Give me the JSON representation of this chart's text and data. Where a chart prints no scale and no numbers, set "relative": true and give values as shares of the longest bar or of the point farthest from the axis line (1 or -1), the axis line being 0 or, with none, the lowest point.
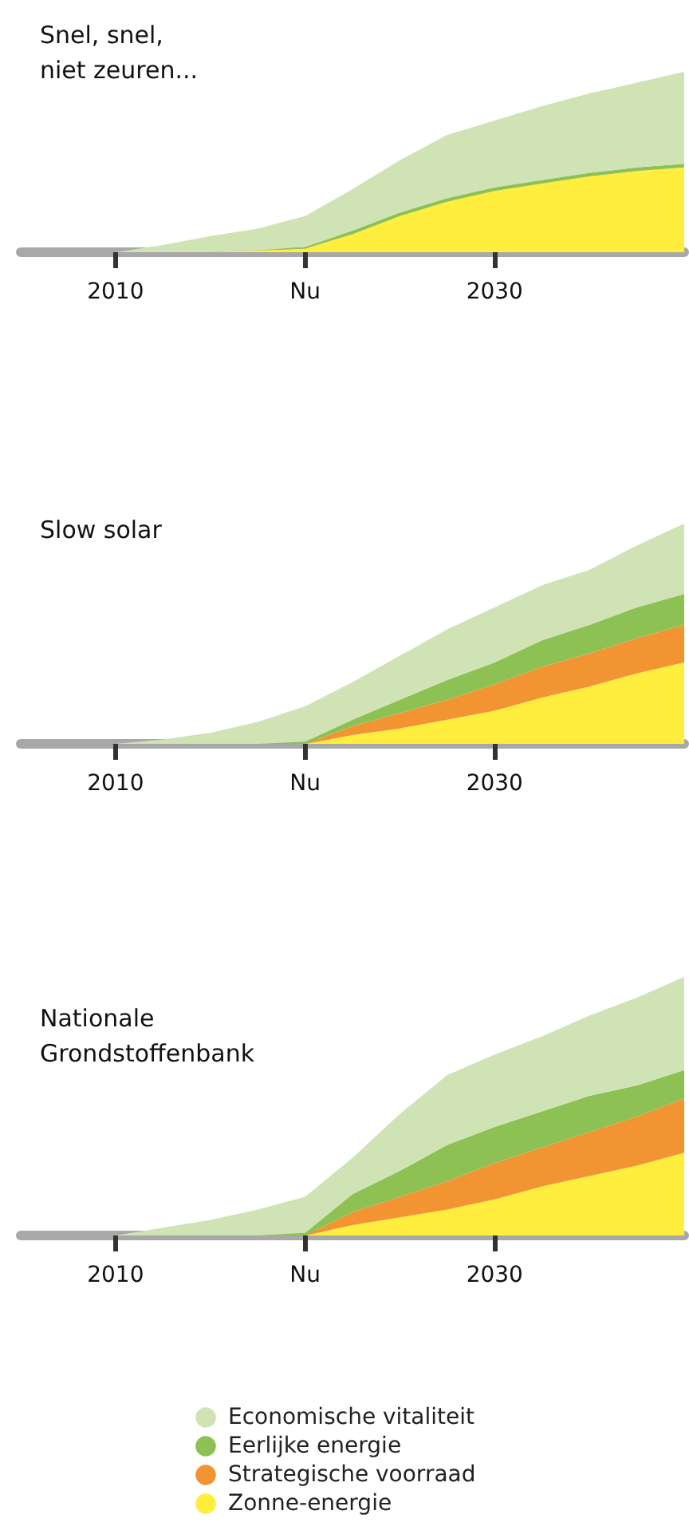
{
  "chart_data": [
    {
      "type": "area",
      "title": "Snel, snel,\nniet zeuren...",
      "relative": true,
      "stacked": true,
      "grid": false,
      "legend": false,
      "categories": [
        null,
        null,
        "2010",
        null,
        null,
        null,
        "Nu",
        null,
        null,
        null,
        "2030",
        null,
        null,
        null,
        null
      ],
      "series": [
        {
          "color": "#ffee3d",
          "values": [
            0,
            0,
            0,
            0,
            0,
            0.01,
            0.02,
            0.1,
            0.2,
            0.28,
            0.34,
            0.38,
            0.42,
            0.45,
            0.47
          ]
        },
        {
          "color": "#8dc153",
          "values": [
            0,
            0,
            0,
            0,
            0,
            0,
            0.01,
            0.02,
            0.02,
            0.02,
            0.02,
            0.02,
            0.02,
            0.02,
            0.02
          ]
        },
        {
          "color": "#cfe3b4",
          "values": [
            0,
            0,
            0,
            0.04,
            0.09,
            0.12,
            0.17,
            0.23,
            0.29,
            0.35,
            0.37,
            0.41,
            0.44,
            0.47,
            0.51
          ]
        }
      ]
    },
    {
      "type": "area",
      "title": "Slow solar",
      "relative": true,
      "stacked": true,
      "grid": false,
      "legend": false,
      "categories": [
        null,
        null,
        "2010",
        null,
        null,
        null,
        "Nu",
        null,
        null,
        null,
        "2030",
        null,
        null,
        null,
        null
      ],
      "series": [
        {
          "color": "#ffee3d",
          "values": [
            0,
            0,
            0,
            0,
            0,
            0,
            0,
            0.04,
            0.07,
            0.11,
            0.15,
            0.21,
            0.26,
            0.32,
            0.37
          ]
        },
        {
          "color": "#f39433",
          "values": [
            0,
            0,
            0,
            0,
            0,
            0,
            0,
            0.04,
            0.07,
            0.09,
            0.12,
            0.14,
            0.15,
            0.16,
            0.17
          ]
        },
        {
          "color": "#8dc153",
          "values": [
            0,
            0,
            0,
            0,
            0,
            0,
            0.01,
            0.03,
            0.06,
            0.09,
            0.1,
            0.12,
            0.13,
            0.14,
            0.14
          ]
        },
        {
          "color": "#cfe3b4",
          "values": [
            0,
            0,
            0,
            0.02,
            0.05,
            0.1,
            0.16,
            0.17,
            0.2,
            0.23,
            0.25,
            0.25,
            0.25,
            0.28,
            0.32
          ]
        }
      ]
    },
    {
      "type": "area",
      "title": "Nationale\nGrondstoffenbank",
      "relative": true,
      "stacked": true,
      "grid": false,
      "legend": "bottom",
      "categories": [
        null,
        null,
        "2010",
        null,
        null,
        null,
        "Nu",
        null,
        null,
        null,
        "2030",
        null,
        null,
        null,
        null
      ],
      "series": [
        {
          "name": "Zonne-energie",
          "color": "#ffee3d",
          "values": [
            0,
            0,
            0,
            0,
            0,
            0,
            0,
            0.04,
            0.07,
            0.1,
            0.14,
            0.19,
            0.23,
            0.27,
            0.32
          ]
        },
        {
          "name": "Strategische voorraad",
          "color": "#f39433",
          "values": [
            0,
            0,
            0,
            0,
            0,
            0,
            0,
            0.05,
            0.08,
            0.11,
            0.14,
            0.15,
            0.17,
            0.19,
            0.21
          ]
        },
        {
          "name": "Eerlijke energie",
          "color": "#8dc153",
          "values": [
            0,
            0,
            0,
            0,
            0,
            0,
            0.01,
            0.07,
            0.1,
            0.14,
            0.14,
            0.14,
            0.14,
            0.12,
            0.11
          ]
        },
        {
          "name": "Economische vitaliteit",
          "color": "#cfe3b4",
          "values": [
            0,
            0,
            0,
            0.03,
            0.06,
            0.1,
            0.14,
            0.14,
            0.22,
            0.27,
            0.28,
            0.29,
            0.31,
            0.34,
            0.36
          ]
        }
      ]
    }
  ]
}
